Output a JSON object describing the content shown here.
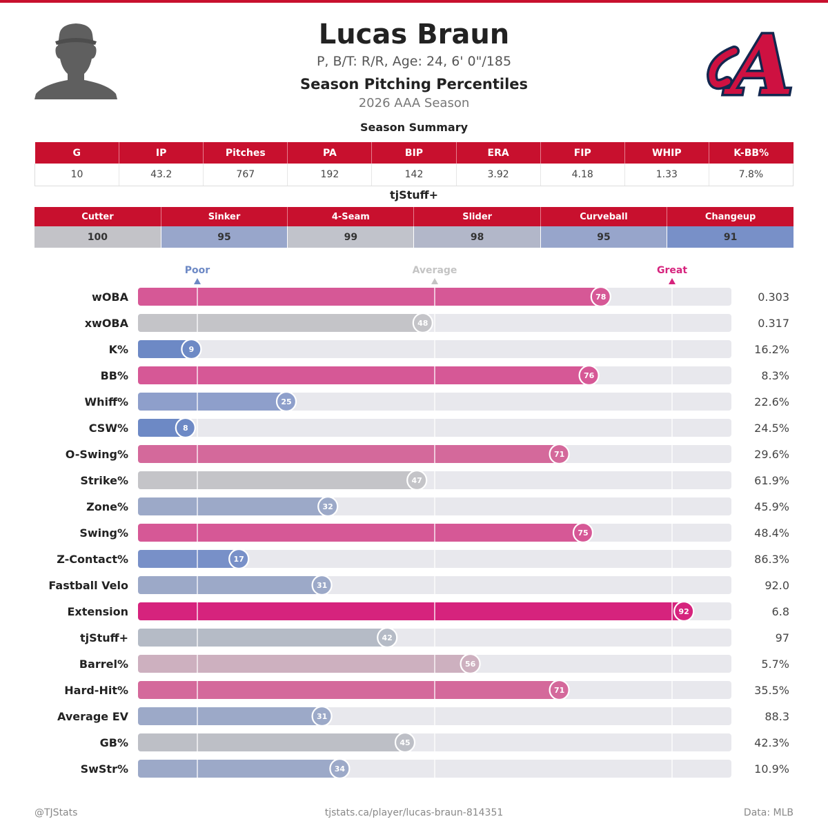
{
  "header": {
    "player_name": "Lucas Braun",
    "player_info": "P, B/T: R/R, Age: 24, 6' 0\"/185",
    "title": "Season Pitching Percentiles",
    "season": "2026 AAA Season",
    "logo_letter": "A"
  },
  "summary": {
    "title": "Season Summary",
    "headers": [
      "G",
      "IP",
      "Pitches",
      "PA",
      "BIP",
      "ERA",
      "FIP",
      "WHIP",
      "K-BB%"
    ],
    "values": [
      "10",
      "43.2",
      "767",
      "192",
      "142",
      "3.92",
      "4.18",
      "1.33",
      "7.8%"
    ]
  },
  "tjstuff": {
    "title": "tjStuff+",
    "pitches": [
      "Cutter",
      "Sinker",
      "4-Seam",
      "Slider",
      "Curveball",
      "Changeup"
    ],
    "values": [
      "100",
      "95",
      "99",
      "98",
      "95",
      "91"
    ],
    "cell_colors": [
      "#c3c3c8",
      "#98a6cb",
      "#c1c3cb",
      "#b2b7c9",
      "#97a5cb",
      "#7890c8"
    ]
  },
  "scale": {
    "poor_label": "Poor",
    "average_label": "Average",
    "great_label": "Great",
    "poor_color": "#6d89c5",
    "average_color": "#c4c4c4",
    "great_color": "#d6237d"
  },
  "chart_data": {
    "type": "bar",
    "title": "Season Pitching Percentiles",
    "xlim": [
      0,
      100
    ],
    "reference_marks": {
      "Poor": 10,
      "Average": 50,
      "Great": 90
    },
    "categories": [
      "wOBA",
      "xwOBA",
      "K%",
      "BB%",
      "Whiff%",
      "CSW%",
      "O-Swing%",
      "Strike%",
      "Zone%",
      "Swing%",
      "Z-Contact%",
      "Fastball Velo",
      "Extension",
      "tjStuff+",
      "Barrel%",
      "Hard-Hit%",
      "Average EV",
      "GB%",
      "SwStr%"
    ],
    "percentiles": [
      78,
      48,
      9,
      76,
      25,
      8,
      71,
      47,
      32,
      75,
      17,
      31,
      92,
      42,
      56,
      71,
      31,
      45,
      34
    ],
    "stat_values": [
      "0.303",
      "0.317",
      "16.2%",
      "8.3%",
      "22.6%",
      "24.5%",
      "29.6%",
      "61.9%",
      "45.9%",
      "48.4%",
      "86.3%",
      "92.0",
      "6.8",
      "97",
      "5.7%",
      "35.5%",
      "88.3",
      "42.3%",
      "10.9%"
    ],
    "bar_colors": [
      "#d65896",
      "#c4c4c8",
      "#6d89c5",
      "#d65896",
      "#8e9fcb",
      "#6d89c5",
      "#d4699b",
      "#c4c4c8",
      "#9ca9c8",
      "#d65896",
      "#7890c8",
      "#9ca9c8",
      "#d6237d",
      "#b5bbc6",
      "#cdb0bf",
      "#d4699b",
      "#9ca9c8",
      "#bdbfc6",
      "#9ca9c8"
    ]
  },
  "footer": {
    "left": "@TJStats",
    "center": "tjstats.ca/player/lucas-braun-814351",
    "right": "Data: MLB"
  }
}
